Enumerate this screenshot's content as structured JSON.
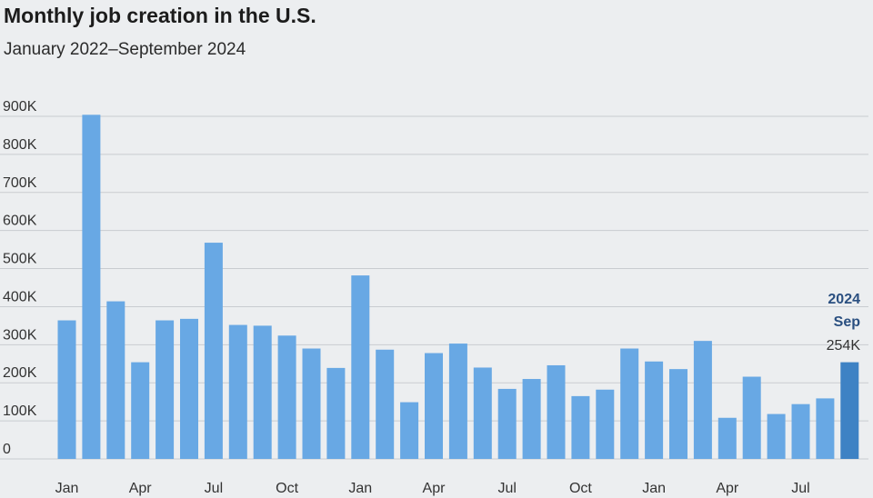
{
  "chart_data": {
    "type": "bar",
    "title": "Monthly job creation in the U.S.",
    "subtitle": "January 2022–September 2024",
    "ylim": [
      0,
      900000
    ],
    "yticks": [
      {
        "value": 0,
        "label": "0"
      },
      {
        "value": 100000,
        "label": "100K"
      },
      {
        "value": 200000,
        "label": "200K"
      },
      {
        "value": 300000,
        "label": "300K"
      },
      {
        "value": 400000,
        "label": "400K"
      },
      {
        "value": 500000,
        "label": "500K"
      },
      {
        "value": 600000,
        "label": "600K"
      },
      {
        "value": 700000,
        "label": "700K"
      },
      {
        "value": 800000,
        "label": "800K"
      },
      {
        "value": 900000,
        "label": "900K"
      }
    ],
    "grid": true,
    "categories": [
      "2022-01",
      "2022-02",
      "2022-03",
      "2022-04",
      "2022-05",
      "2022-06",
      "2022-07",
      "2022-08",
      "2022-09",
      "2022-10",
      "2022-11",
      "2022-12",
      "2023-01",
      "2023-02",
      "2023-03",
      "2023-04",
      "2023-05",
      "2023-06",
      "2023-07",
      "2023-08",
      "2023-09",
      "2023-10",
      "2023-11",
      "2023-12",
      "2024-01",
      "2024-02",
      "2024-03",
      "2024-04",
      "2024-05",
      "2024-06",
      "2024-07",
      "2024-08",
      "2024-09"
    ],
    "values": [
      364000,
      904000,
      414000,
      254000,
      364000,
      368000,
      568000,
      352000,
      350000,
      324000,
      290000,
      239000,
      482000,
      287000,
      149000,
      278000,
      303000,
      240000,
      184000,
      210000,
      246000,
      165000,
      182000,
      290000,
      256000,
      236000,
      310000,
      108000,
      216000,
      118000,
      144000,
      159000,
      254000
    ],
    "x_tick_labels": [
      {
        "index": 0,
        "label": "Jan"
      },
      {
        "index": 3,
        "label": "Apr"
      },
      {
        "index": 6,
        "label": "Jul"
      },
      {
        "index": 9,
        "label": "Oct"
      },
      {
        "index": 12,
        "label": "Jan"
      },
      {
        "index": 15,
        "label": "Apr"
      },
      {
        "index": 18,
        "label": "Jul"
      },
      {
        "index": 21,
        "label": "Oct"
      },
      {
        "index": 24,
        "label": "Jan"
      },
      {
        "index": 27,
        "label": "Apr"
      },
      {
        "index": 30,
        "label": "Jul"
      }
    ],
    "highlight": {
      "index": 32,
      "year": "2024",
      "month": "Sep",
      "value_label": "254K"
    },
    "colors": {
      "bar": "#68a8e4",
      "highlight_bar": "#3e82c4",
      "grid": "#c9ccd0",
      "background": "#eceef0"
    }
  }
}
